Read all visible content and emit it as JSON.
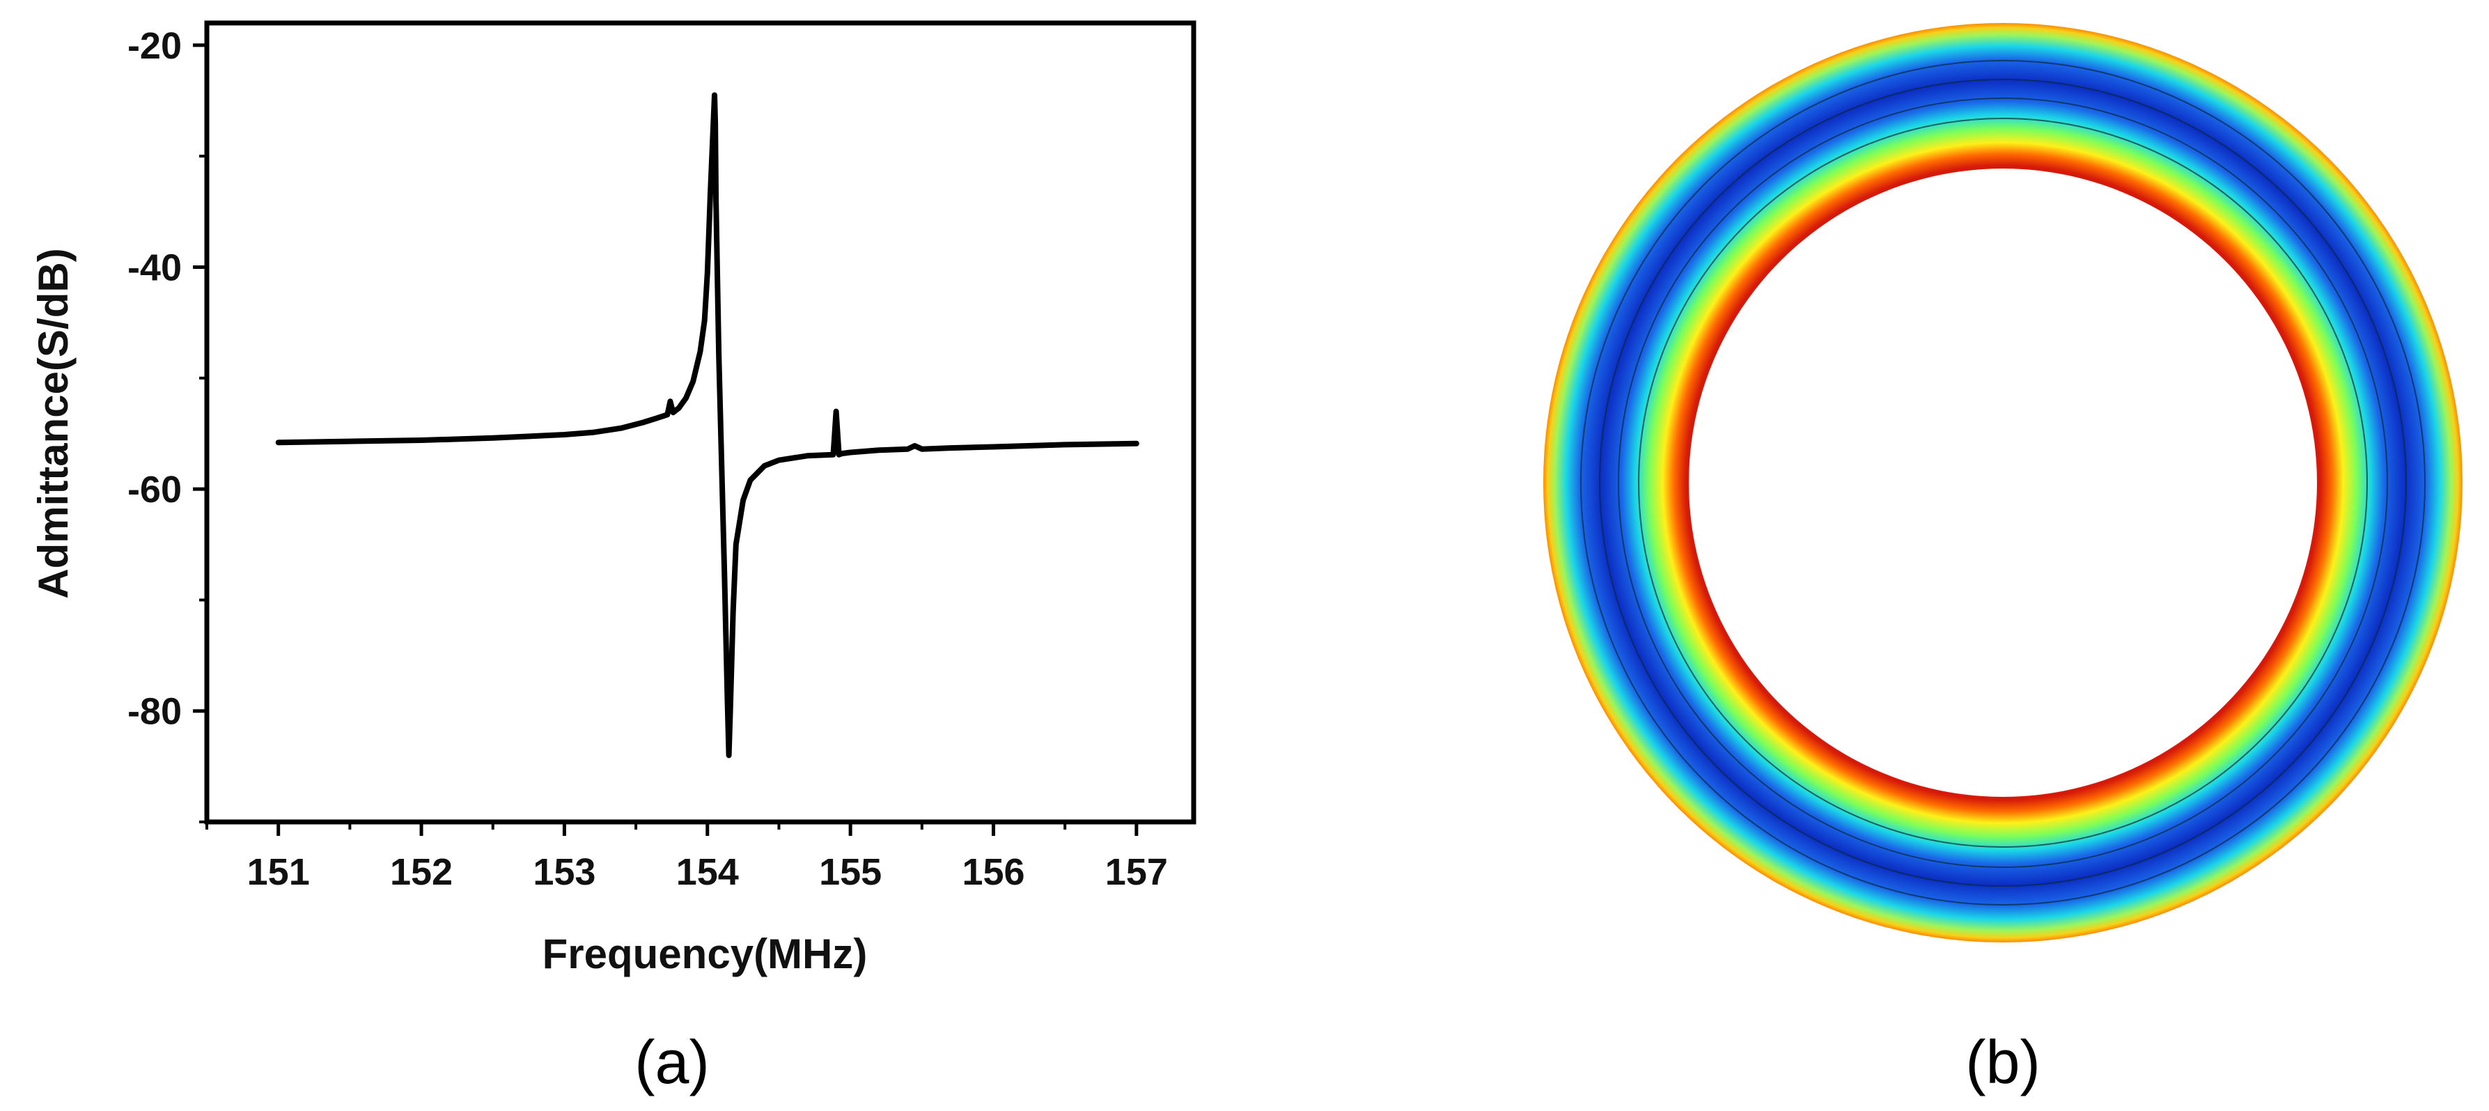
{
  "panels": {
    "a_label": "(a)",
    "b_label": "(b)"
  },
  "chart_data": {
    "type": "line",
    "title": "",
    "xlabel": "Frequency(MHz)",
    "ylabel": "Admittance(S/dB)",
    "xlim": [
      150.5,
      157.4
    ],
    "ylim": [
      -90,
      -18
    ],
    "xticks": [
      151,
      152,
      153,
      154,
      155,
      156,
      157
    ],
    "yticks": [
      -20,
      -40,
      -60,
      -80
    ],
    "xtick_labels": [
      "151",
      "152",
      "153",
      "154",
      "155",
      "156",
      "157"
    ],
    "ytick_labels": [
      "-20",
      "-40",
      "-60",
      "-80"
    ],
    "grid": false,
    "legend": "none",
    "series": [
      {
        "color": "#000000",
        "x": [
          151.0,
          151.5,
          152.0,
          152.5,
          153.0,
          153.2,
          153.4,
          153.55,
          153.65,
          153.72,
          153.74,
          153.76,
          153.8,
          153.85,
          153.9,
          153.95,
          153.98,
          154.0,
          154.02,
          154.04,
          154.05,
          154.055,
          154.06,
          154.08,
          154.1,
          154.12,
          154.14,
          154.15,
          154.16,
          154.18,
          154.2,
          154.25,
          154.3,
          154.4,
          154.5,
          154.7,
          154.88,
          154.9,
          154.92,
          154.94,
          155.0,
          155.2,
          155.4,
          155.45,
          155.5,
          155.7,
          156.0,
          156.5,
          157.0
        ],
        "y": [
          -55.8,
          -55.7,
          -55.6,
          -55.4,
          -55.1,
          -54.9,
          -54.5,
          -54.0,
          -53.6,
          -53.3,
          -52.1,
          -53.1,
          -52.7,
          -51.8,
          -50.3,
          -47.6,
          -44.8,
          -40.5,
          -33.5,
          -27.5,
          -24.5,
          -27.0,
          -34.0,
          -48.0,
          -58.0,
          -68.0,
          -79.0,
          -84.0,
          -80.0,
          -71.0,
          -65.0,
          -61.0,
          -59.2,
          -57.9,
          -57.4,
          -57.0,
          -56.9,
          -53.0,
          -56.9,
          -56.8,
          -56.7,
          -56.5,
          -56.4,
          -56.1,
          -56.4,
          -56.3,
          -56.2,
          -56.0,
          -55.9
        ]
      }
    ]
  }
}
